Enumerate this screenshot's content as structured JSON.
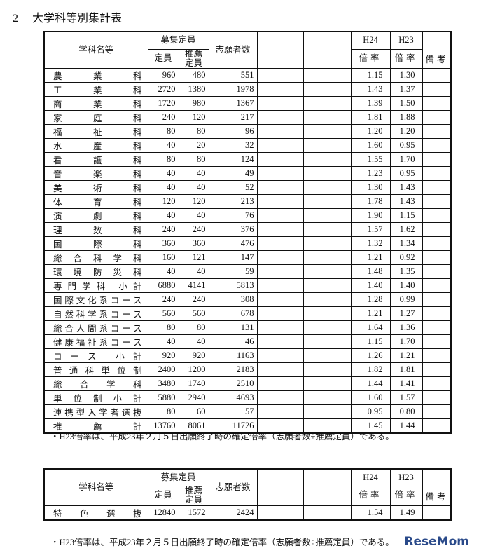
{
  "header": {
    "number": "2",
    "title": "大学科等別集計表"
  },
  "table1": {
    "headers": {
      "name": "学科名等",
      "recruit": "募集定員",
      "capacity": "定員",
      "suisen": "推薦定員",
      "applicants": "志願者数",
      "h24": "H24",
      "h23": "H23",
      "ratio24": "倍率",
      "ratio23": "倍率",
      "remarks": "備考"
    },
    "rows": [
      [
        "農業科",
        960,
        480,
        551,
        "1.15",
        "1.30"
      ],
      [
        "工業科",
        2720,
        1380,
        1978,
        "1.43",
        "1.37"
      ],
      [
        "商業科",
        1720,
        980,
        1367,
        "1.39",
        "1.50"
      ],
      [
        "家庭科",
        240,
        120,
        217,
        "1.81",
        "1.88"
      ],
      [
        "福祉科",
        80,
        80,
        96,
        "1.20",
        "1.20"
      ],
      [
        "水産科",
        40,
        20,
        32,
        "1.60",
        "0.95"
      ],
      [
        "看護科",
        80,
        80,
        124,
        "1.55",
        "1.70"
      ],
      [
        "音楽科",
        40,
        40,
        49,
        "1.23",
        "0.95"
      ],
      [
        "美術科",
        40,
        40,
        52,
        "1.30",
        "1.43"
      ],
      [
        "体育科",
        120,
        120,
        213,
        "1.78",
        "1.43"
      ],
      [
        "演劇科",
        40,
        40,
        76,
        "1.90",
        "1.15"
      ],
      [
        "理数科",
        240,
        240,
        376,
        "1.57",
        "1.62"
      ],
      [
        "国際科",
        360,
        360,
        476,
        "1.32",
        "1.34"
      ],
      [
        "総合科学科",
        160,
        121,
        147,
        "1.21",
        "0.92"
      ],
      [
        "環境防災科",
        40,
        40,
        59,
        "1.48",
        "1.35"
      ],
      [
        "専門学科 小計",
        6880,
        4141,
        5813,
        "1.40",
        "1.40"
      ],
      [
        "国際文化系コース",
        240,
        240,
        308,
        "1.28",
        "0.99"
      ],
      [
        "自然科学系コース",
        560,
        560,
        678,
        "1.21",
        "1.27"
      ],
      [
        "総合人間系コース",
        80,
        80,
        131,
        "1.64",
        "1.36"
      ],
      [
        "健康福祉系コース",
        40,
        40,
        46,
        "1.15",
        "1.70"
      ],
      [
        "コース 小計",
        920,
        920,
        1163,
        "1.26",
        "1.21"
      ],
      [
        "普通科単位制",
        2400,
        1200,
        2183,
        "1.82",
        "1.81"
      ],
      [
        "総合学科",
        3480,
        1740,
        2510,
        "1.44",
        "1.41"
      ],
      [
        "単位制小計",
        5880,
        2940,
        4693,
        "1.60",
        "1.57"
      ],
      [
        "連携型入学者選抜",
        80,
        60,
        57,
        "0.95",
        "0.80"
      ],
      [
        "推薦計",
        13760,
        8061,
        11726,
        "1.45",
        "1.44"
      ]
    ]
  },
  "note1": "・H23倍率は、平成23年２月５日出願終了時の確定倍率（志願者数÷推薦定員）である。",
  "table2": {
    "headers": {
      "name": "学科名等",
      "recruit": "募集定員",
      "capacity": "定員",
      "suisen": "推薦定員",
      "applicants": "志願者数",
      "h24": "H24",
      "h23": "H23",
      "ratio24": "倍率",
      "ratio23": "倍率",
      "remarks": "備考"
    },
    "rows": [
      [
        "特色選抜",
        12840,
        1572,
        2424,
        "1.54",
        "1.49"
      ]
    ]
  },
  "note2": "・H23倍率は、平成23年２月５日出願終了時の確定倍率（志願者数÷推薦定員）である。",
  "watermark": "ReseMom"
}
